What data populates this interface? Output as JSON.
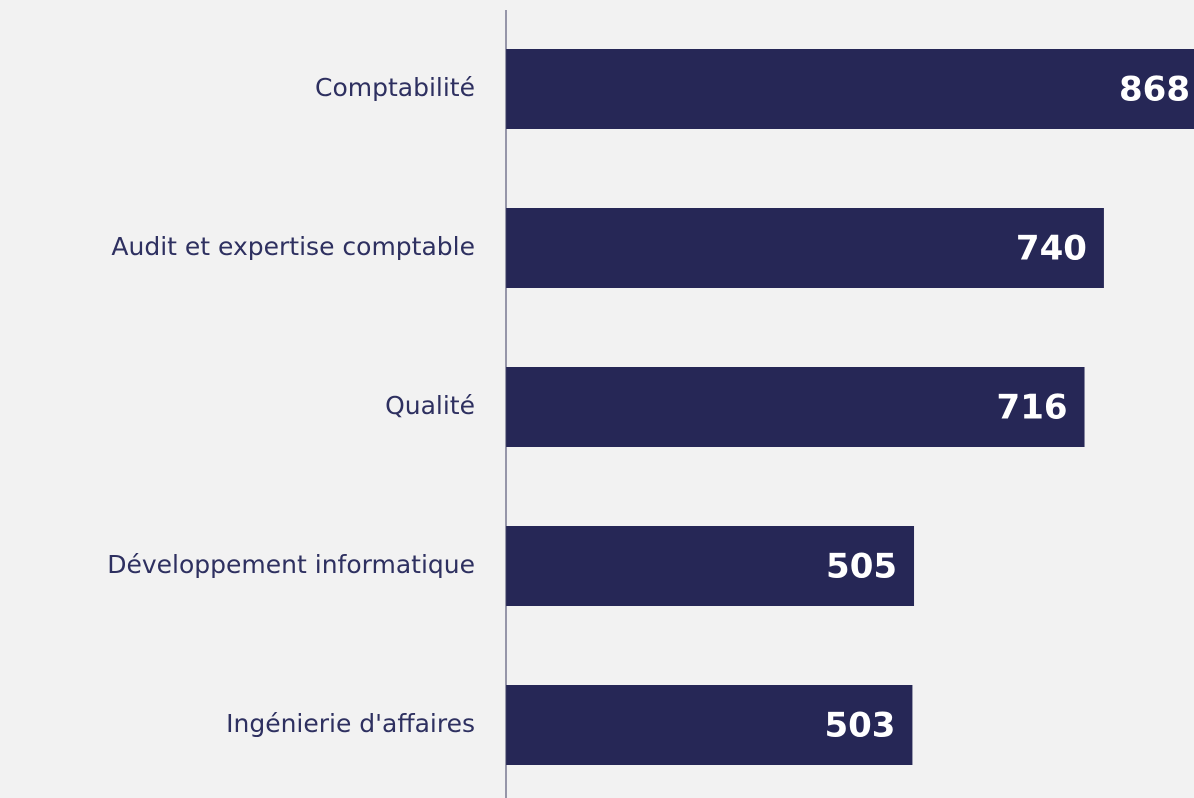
{
  "chart_data": {
    "type": "bar",
    "orientation": "horizontal",
    "categories": [
      "Comptabilité",
      "Audit et expertise comptable",
      "Qualité",
      "Développement informatique",
      "Ingénierie d'affaires"
    ],
    "values": [
      868,
      740,
      716,
      505,
      503
    ],
    "color": "#262756"
  }
}
